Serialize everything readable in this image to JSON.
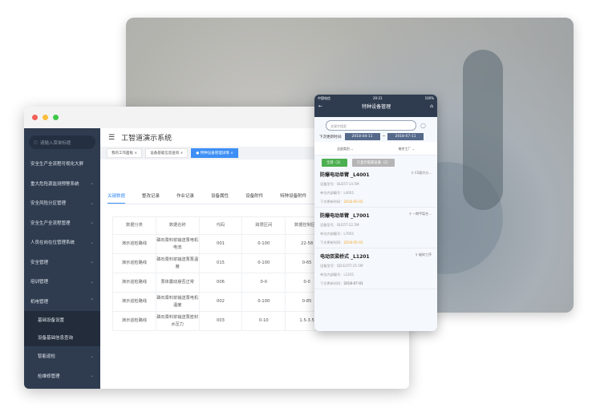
{
  "desktop": {
    "search_placeholder": "请输入菜单标题",
    "sidebar": [
      "安全生产全流程可视化大屏",
      "重大危险源监测预警系统",
      "安全风险分区管理",
      "安全生产全流程管理",
      "人员在岗在位管理系统",
      "安全管理",
      "培训管理",
      "机电管理"
    ],
    "sub": [
      "基础设备设置",
      "设备基础信息查询"
    ],
    "sub2": [
      "智能巡检",
      "检维修管理"
    ],
    "title": "工智道演示系统",
    "tags": [
      "我的工作面板",
      "设备基础信息查询",
      "特种设备管理详情"
    ],
    "tabs": [
      "关键数据",
      "整改记录",
      "作业记录",
      "设备属性",
      "设备附件",
      "特种设备附件"
    ],
    "table": {
      "headers": [
        "数据分类",
        "数据名称",
        "代码",
        "跨限区间",
        "数据控制区间"
      ],
      "rows": [
        [
          "演示巡检路线",
          "磷石膏料浆输送泵电机电流",
          "001",
          "0-100",
          "22-58"
        ],
        [
          "演示巡检路线",
          "磷石膏料浆输送泵泵温度",
          "015",
          "0-100",
          "0-65"
        ],
        [
          "演示巡检路线",
          "泵体震动悬否正常",
          "006",
          "0-0",
          "0-0"
        ],
        [
          "演示巡检路线",
          "磷石膏料浆输送泵电机温度",
          "002",
          "0-100",
          "0-85"
        ],
        [
          "演示巡检路线",
          "磷石膏料浆输送泵密封水压力",
          "003",
          "0-10",
          "1.5-3.5"
        ]
      ]
    }
  },
  "mobile": {
    "carrier": "中国电信",
    "time": "20:21",
    "battery": "100%",
    "title": "特种设备管理",
    "search_placeholder": "关键字搜索",
    "date_label": "下次更新时间:",
    "date_from": "2018-04-11",
    "date_to": "2018-07-11",
    "filter1": "全部类别",
    "filter2": "南京工厂",
    "btn_all": "全部（3）",
    "btn_expire": "只显示临期设备（2）",
    "cards": [
      {
        "name": "防爆电动单臂 _L4001",
        "loc": "C0滚冷分...",
        "model": "设备型号：BLD5T-14.5M",
        "code": "单位内部编号：L4001",
        "next_label": "下次更新时间：",
        "next": "2018-05-01",
        "warn": true
      },
      {
        "name": "防爆电动单臂 _L7001",
        "loc": "一期甲梨合...",
        "model": "设备型号：BLD5T-22.5M",
        "code": "单位内部编号：L7001",
        "next_label": "下次更新时间：",
        "next": "2018-05-01",
        "warn": true
      },
      {
        "name": "电动双梁桥式 _L1201",
        "loc": "破碎工序",
        "model": "设备型号：QD32/5T-25.5M",
        "code": "单位内部编号：L1201",
        "next_label": "下次更新时间：",
        "next": "2018-07-01",
        "warn": false
      }
    ]
  },
  "colors": {
    "sidebar": "#2f3c50",
    "accent": "#3d8ff5",
    "green": "#4caf50",
    "warn": "#f5a623"
  }
}
